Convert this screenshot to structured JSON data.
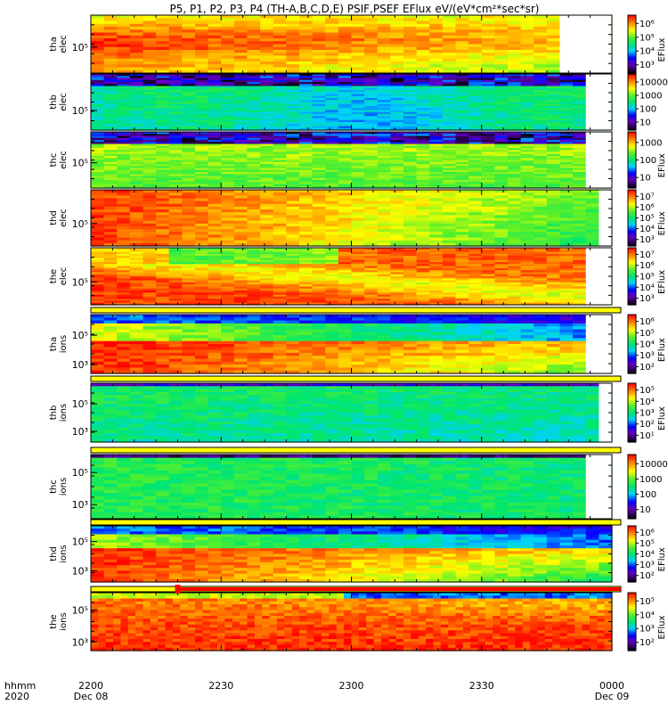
{
  "title": "P5, P1, P2, P3, P4 (TH-A,B,C,D,E) PSIF,PSEF EFlux eV/(eV*cm²*sec*sr)",
  "colors": {
    "bar": "#ffff00",
    "bar_edge": "#000000",
    "mode_bar": "#ff0000",
    "background": "#ffffff"
  },
  "time_axis": {
    "label_top": "hhmm",
    "label_bottom": "2020",
    "ticks": [
      {
        "t": 0,
        "label": "2200",
        "sub": "Dec 08"
      },
      {
        "t": 30,
        "label": "2230",
        "sub": ""
      },
      {
        "t": 60,
        "label": "2300",
        "sub": ""
      },
      {
        "t": 90,
        "label": "2330",
        "sub": ""
      },
      {
        "t": 120,
        "label": "0000",
        "sub": "Dec 09"
      }
    ]
  },
  "chart_data": {
    "type": "heatmap",
    "x_unit": "minutes after 2200 UT, 2020 Dec 08",
    "xlim": [
      0,
      120
    ],
    "colormap": "rainbow (black-purple-blue-cyan-green-yellow-red)",
    "panels": [
      {
        "name": "tha_elec",
        "line1": "tha",
        "line2": "elec",
        "ytick_labels": [
          "10⁵"
        ],
        "colorbar_labels": [
          "10⁶",
          "10⁵",
          "10⁴",
          "10³"
        ],
        "colorbar_title": "EFlux"
      },
      {
        "name": "thb_elec",
        "line1": "thb",
        "line2": "elec",
        "ytick_labels": [
          "10⁵"
        ],
        "colorbar_labels": [
          "10000",
          "1000",
          "100",
          "10"
        ],
        "colorbar_title": ""
      },
      {
        "name": "thc_elec",
        "line1": "thc",
        "line2": "elec",
        "ytick_labels": [
          "10⁵"
        ],
        "colorbar_labels": [
          "1000",
          "100",
          "10"
        ],
        "colorbar_title": "EFlux"
      },
      {
        "name": "thd_elec",
        "line1": "thd",
        "line2": "elec",
        "ytick_labels": [
          "10⁵"
        ],
        "colorbar_labels": [
          "10⁷",
          "10⁶",
          "10⁵",
          "10⁴",
          "10³"
        ],
        "colorbar_title": "EFlux"
      },
      {
        "name": "the_elec",
        "line1": "the",
        "line2": "elec",
        "ytick_labels": [
          "10⁵"
        ],
        "colorbar_labels": [
          "10⁷",
          "10⁶",
          "10⁵",
          "10⁴",
          "10³"
        ],
        "colorbar_title": "EFlux"
      },
      {
        "name": "tha_ions",
        "line1": "tha",
        "line2": "ions",
        "ytick_labels": [
          "10⁵",
          "10³"
        ],
        "colorbar_labels": [
          "10⁶",
          "10⁵",
          "10⁴",
          "10³",
          "10²"
        ],
        "colorbar_title": "EFlux"
      },
      {
        "name": "thb_ions",
        "line1": "thb",
        "line2": "ions",
        "ytick_labels": [
          "10⁵",
          "10³"
        ],
        "colorbar_labels": [
          "10⁵",
          "10⁴",
          "10³",
          "10²",
          "10¹"
        ],
        "colorbar_title": "EFlux"
      },
      {
        "name": "thc_ions",
        "line1": "thc",
        "line2": "ions",
        "ytick_labels": [
          "10⁵",
          "10³"
        ],
        "colorbar_labels": [
          "10000",
          "1000",
          "100",
          "10"
        ],
        "colorbar_title": ""
      },
      {
        "name": "thd_ions",
        "line1": "thd",
        "line2": "ions",
        "ytick_labels": [
          "10⁵",
          "10³"
        ],
        "colorbar_labels": [
          "10⁶",
          "10⁵",
          "10⁴",
          "10³",
          "10²"
        ],
        "colorbar_title": "EFlux"
      },
      {
        "name": "the_ions",
        "line1": "the",
        "line2": "ions",
        "ytick_labels": [
          "10⁵",
          "10³"
        ],
        "colorbar_labels": [
          "10⁵",
          "10⁴",
          "10³",
          "10²"
        ],
        "colorbar_title": "EFlux"
      }
    ],
    "mode_bar": {
      "start": 20,
      "end": 120
    }
  }
}
